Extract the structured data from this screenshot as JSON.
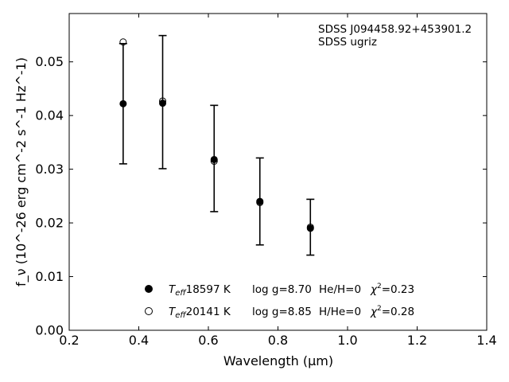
{
  "chart_data": {
    "type": "scatter",
    "title": "",
    "xlabel": "Wavelength (μm)",
    "ylabel": "f_ν (10^-26 erg cm^-2 s^-1 Hz^-1)",
    "xlim": [
      0.2,
      1.4
    ],
    "ylim": [
      0.0,
      0.059
    ],
    "xticks": [
      0.2,
      0.4,
      0.6,
      0.8,
      1.0,
      1.2,
      1.4
    ],
    "xtick_labels": [
      "0.2",
      "0.4",
      "0.6",
      "0.8",
      "1.0",
      "1.2",
      "1.4"
    ],
    "yticks": [
      0.0,
      0.01,
      0.02,
      0.03,
      0.04,
      0.05
    ],
    "ytick_labels": [
      "0.00",
      "0.01",
      "0.02",
      "0.03",
      "0.04",
      "0.05"
    ],
    "grid": false,
    "annotation_lines": [
      "SDSS J094458.92+453901.2",
      "SDSS ugriz"
    ],
    "observed": {
      "x": [
        0.3551,
        0.4686,
        0.6166,
        0.748,
        0.8932
      ],
      "y": [
        0.0422,
        0.0425,
        0.032,
        0.024,
        0.0192
      ],
      "yerr": [
        0.0112,
        0.0124,
        0.0099,
        0.0081,
        0.0052
      ],
      "errorbar_color": "#000000"
    },
    "series": [
      {
        "name": "Teff= 18597 K  log g=8.70  He/H=0  χ²=0.23",
        "marker": "filled-circle",
        "x": [
          0.3551,
          0.4686,
          0.6166,
          0.748,
          0.8932
        ],
        "y": [
          0.0422,
          0.0423,
          0.0318,
          0.024,
          0.019
        ]
      },
      {
        "name": "Teff= 20141 K  log g=8.85  H/He=0  χ²=0.28",
        "marker": "open-circle",
        "x": [
          0.3551,
          0.4686,
          0.6166,
          0.748,
          0.8932
        ],
        "y": [
          0.0537,
          0.0427,
          0.0315,
          0.0238,
          0.0192
        ]
      }
    ],
    "legend": {
      "placement": "lower-center",
      "entries": [
        {
          "teff": "18597 K",
          "logg": "log g=8.70",
          "comp": "He/H=0",
          "chi2": "=0.23"
        },
        {
          "teff": "20141 K",
          "logg": "log g=8.85",
          "comp": "H/He=0",
          "chi2": "=0.28"
        }
      ]
    }
  }
}
